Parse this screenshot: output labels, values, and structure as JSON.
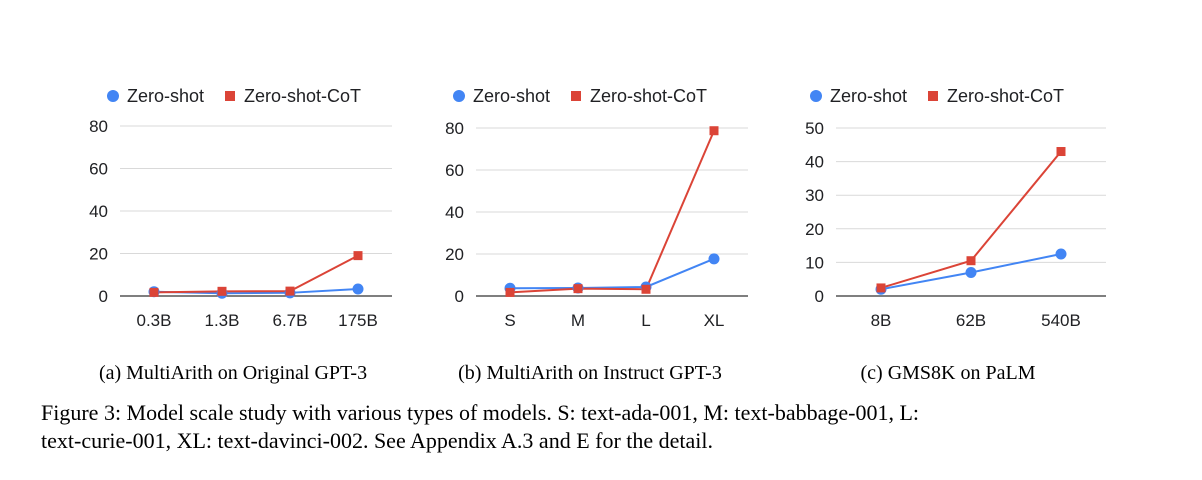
{
  "colors": {
    "zero_shot": "#4285f4",
    "zero_shot_cot": "#db4437",
    "grid": "#d9d9d9",
    "axis": "#333333"
  },
  "chart_data": [
    {
      "type": "line",
      "caption": "(a) MultiArith on Original GPT-3",
      "categories": [
        "0.3B",
        "1.3B",
        "6.7B",
        "175B"
      ],
      "ylim": [
        0,
        80
      ],
      "yticks": [
        "0",
        "20",
        "40",
        "60",
        "80"
      ],
      "legend_position": "top",
      "grid": true,
      "series": [
        {
          "name": "Zero-shot",
          "marker": "circle",
          "values": [
            2.0,
            1.3,
            1.5,
            3.3
          ]
        },
        {
          "name": "Zero-shot-CoT",
          "marker": "square",
          "values": [
            1.7,
            2.2,
            2.3,
            19.0
          ]
        }
      ]
    },
    {
      "type": "line",
      "caption": "(b) MultiArith on Instruct GPT-3",
      "categories": [
        "S",
        "M",
        "L",
        "XL"
      ],
      "ylim": [
        0,
        80
      ],
      "yticks": [
        "0",
        "20",
        "40",
        "60",
        "80"
      ],
      "legend_position": "top",
      "grid": true,
      "series": [
        {
          "name": "Zero-shot",
          "marker": "circle",
          "values": [
            3.7,
            3.8,
            4.3,
            17.7
          ]
        },
        {
          "name": "Zero-shot-CoT",
          "marker": "square",
          "values": [
            1.7,
            3.5,
            3.2,
            78.7
          ]
        }
      ]
    },
    {
      "type": "line",
      "caption": "(c) GMS8K on PaLM",
      "categories": [
        "8B",
        "62B",
        "540B"
      ],
      "ylim": [
        0,
        50
      ],
      "yticks": [
        "0",
        "10",
        "20",
        "30",
        "40",
        "50"
      ],
      "legend_position": "top",
      "grid": true,
      "series": [
        {
          "name": "Zero-shot",
          "marker": "circle",
          "values": [
            2.0,
            7.0,
            12.5
          ]
        },
        {
          "name": "Zero-shot-CoT",
          "marker": "square",
          "values": [
            2.4,
            10.5,
            43.0
          ]
        }
      ]
    }
  ],
  "figure_caption": {
    "line1": "Figure 3: Model scale study with various types of models. S: text-ada-001, M: text-babbage-001, L:",
    "line2": "text-curie-001, XL: text-davinci-002. See Appendix A.3 and E for the detail."
  }
}
